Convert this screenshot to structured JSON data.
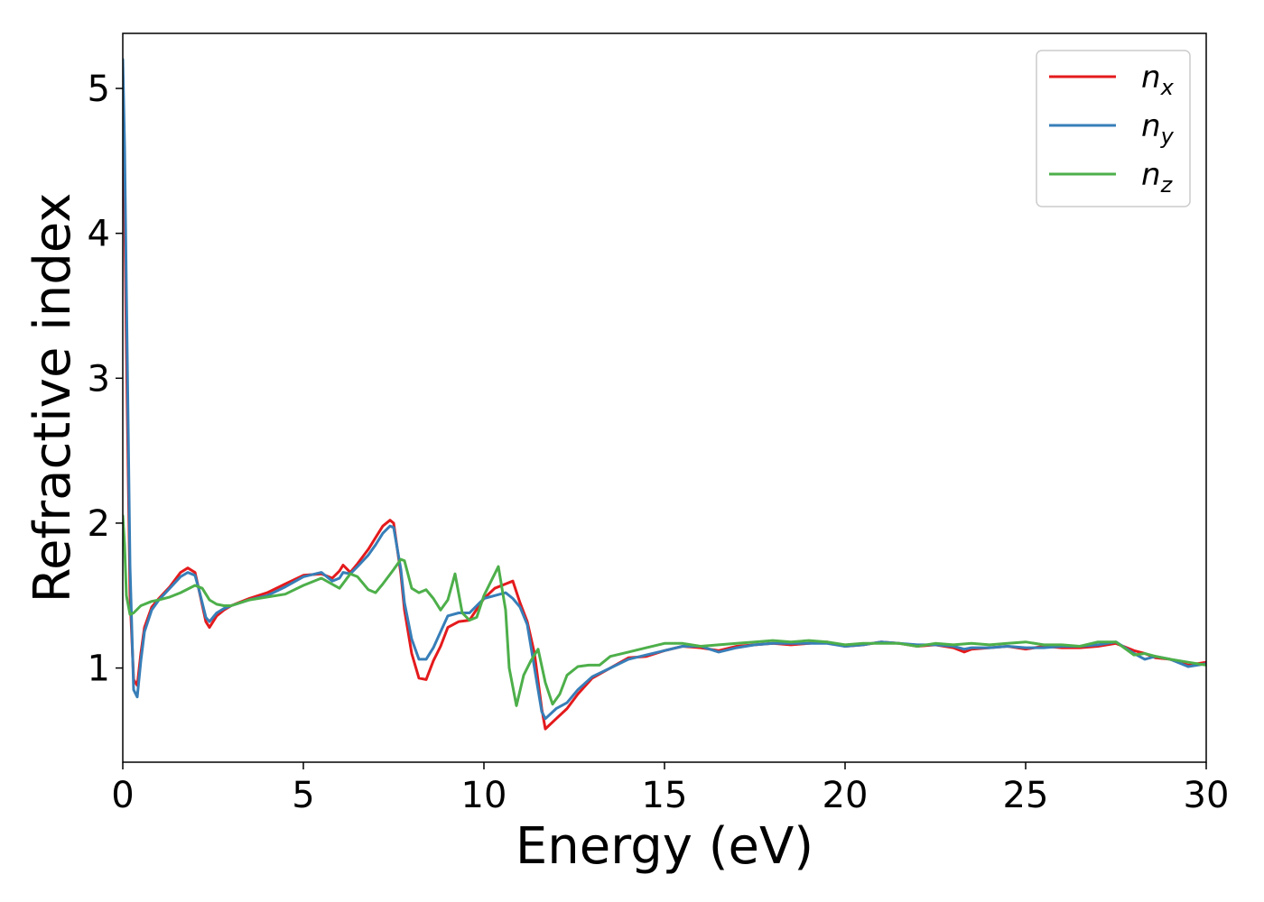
{
  "chart_data": {
    "type": "line",
    "xlabel": "Energy (eV)",
    "ylabel": "Refractive index",
    "xlim": [
      0,
      30
    ],
    "ylim": [
      0.35,
      5.38
    ],
    "xticks": [
      0,
      5,
      10,
      15,
      20,
      25,
      30
    ],
    "xtick_labels": [
      "0",
      "5",
      "10",
      "15",
      "20",
      "25",
      "30"
    ],
    "yticks": [
      1,
      2,
      3,
      4,
      5
    ],
    "ytick_labels": [
      "1",
      "2",
      "3",
      "4",
      "5"
    ],
    "grid": false,
    "legend_position": "top-right",
    "series": [
      {
        "name": "n",
        "subscript": "x",
        "color": "#e41a1c",
        "x": [
          0,
          0.05,
          0.1,
          0.2,
          0.3,
          0.4,
          0.5,
          0.6,
          0.8,
          1.0,
          1.3,
          1.6,
          1.8,
          2.0,
          2.1,
          2.3,
          2.4,
          2.6,
          2.8,
          3.0,
          3.5,
          4.0,
          4.5,
          5.0,
          5.5,
          5.8,
          6.0,
          6.1,
          6.3,
          6.5,
          6.8,
          7.0,
          7.2,
          7.4,
          7.5,
          7.7,
          7.8,
          8.0,
          8.2,
          8.4,
          8.6,
          8.8,
          9.0,
          9.3,
          9.6,
          10.0,
          10.3,
          10.6,
          10.8,
          11.0,
          11.2,
          11.4,
          11.6,
          11.7,
          12.0,
          12.3,
          12.6,
          13.0,
          13.5,
          14.0,
          14.5,
          15.0,
          15.5,
          16.0,
          16.5,
          17.0,
          17.5,
          18.0,
          18.5,
          19.0,
          19.5,
          20.0,
          20.5,
          21.0,
          21.5,
          22.0,
          22.5,
          23.0,
          23.3,
          23.5,
          24.0,
          24.5,
          25.0,
          25.5,
          26.0,
          26.5,
          27.0,
          27.5,
          28.0,
          28.3,
          28.6,
          29.0,
          29.5,
          30.0
        ],
        "y": [
          5.1,
          4.2,
          3.2,
          1.5,
          0.92,
          0.88,
          1.1,
          1.28,
          1.42,
          1.48,
          1.56,
          1.66,
          1.69,
          1.66,
          1.55,
          1.32,
          1.28,
          1.36,
          1.4,
          1.43,
          1.48,
          1.52,
          1.58,
          1.64,
          1.65,
          1.62,
          1.67,
          1.71,
          1.66,
          1.72,
          1.82,
          1.9,
          1.98,
          2.02,
          2.0,
          1.65,
          1.4,
          1.1,
          0.93,
          0.92,
          1.05,
          1.15,
          1.28,
          1.32,
          1.33,
          1.48,
          1.55,
          1.58,
          1.6,
          1.45,
          1.32,
          1.1,
          0.72,
          0.58,
          0.65,
          0.72,
          0.82,
          0.93,
          1.0,
          1.07,
          1.08,
          1.12,
          1.15,
          1.14,
          1.12,
          1.15,
          1.16,
          1.17,
          1.16,
          1.17,
          1.18,
          1.15,
          1.16,
          1.18,
          1.17,
          1.15,
          1.16,
          1.14,
          1.11,
          1.13,
          1.14,
          1.15,
          1.13,
          1.15,
          1.14,
          1.14,
          1.15,
          1.17,
          1.12,
          1.1,
          1.07,
          1.06,
          1.02,
          1.04
        ]
      },
      {
        "name": "n",
        "subscript": "y",
        "color": "#377eb8",
        "x": [
          0,
          0.05,
          0.1,
          0.2,
          0.3,
          0.4,
          0.5,
          0.6,
          0.8,
          1.0,
          1.3,
          1.6,
          1.8,
          2.0,
          2.1,
          2.3,
          2.4,
          2.6,
          2.8,
          3.0,
          3.5,
          4.0,
          4.5,
          5.0,
          5.5,
          5.8,
          6.0,
          6.1,
          6.3,
          6.5,
          6.8,
          7.0,
          7.2,
          7.4,
          7.5,
          7.7,
          7.8,
          8.0,
          8.2,
          8.4,
          8.6,
          8.8,
          9.0,
          9.3,
          9.6,
          10.0,
          10.3,
          10.6,
          10.8,
          11.0,
          11.2,
          11.4,
          11.6,
          11.7,
          12.0,
          12.3,
          12.6,
          13.0,
          13.5,
          14.0,
          14.5,
          15.0,
          15.5,
          16.0,
          16.5,
          17.0,
          17.5,
          18.0,
          18.5,
          19.0,
          19.5,
          20.0,
          20.5,
          21.0,
          21.5,
          22.0,
          22.5,
          23.0,
          23.3,
          23.5,
          24.0,
          24.5,
          25.0,
          25.5,
          26.0,
          26.5,
          27.0,
          27.5,
          28.0,
          28.3,
          28.6,
          29.0,
          29.5,
          30.0
        ],
        "y": [
          5.2,
          4.6,
          3.6,
          1.7,
          0.85,
          0.8,
          1.05,
          1.25,
          1.4,
          1.47,
          1.55,
          1.63,
          1.66,
          1.64,
          1.55,
          1.35,
          1.32,
          1.38,
          1.41,
          1.43,
          1.47,
          1.5,
          1.56,
          1.63,
          1.66,
          1.6,
          1.62,
          1.66,
          1.65,
          1.7,
          1.78,
          1.85,
          1.93,
          1.98,
          1.97,
          1.68,
          1.45,
          1.2,
          1.06,
          1.06,
          1.14,
          1.25,
          1.36,
          1.38,
          1.38,
          1.48,
          1.5,
          1.52,
          1.48,
          1.42,
          1.3,
          1.0,
          0.7,
          0.65,
          0.72,
          0.76,
          0.85,
          0.94,
          1.0,
          1.06,
          1.09,
          1.12,
          1.15,
          1.15,
          1.11,
          1.14,
          1.16,
          1.17,
          1.17,
          1.17,
          1.17,
          1.15,
          1.16,
          1.18,
          1.17,
          1.16,
          1.16,
          1.15,
          1.13,
          1.14,
          1.14,
          1.15,
          1.14,
          1.14,
          1.15,
          1.15,
          1.16,
          1.18,
          1.1,
          1.06,
          1.08,
          1.06,
          1.01,
          1.03
        ]
      },
      {
        "name": "n",
        "subscript": "z",
        "color": "#4daf4a",
        "x": [
          0,
          0.05,
          0.1,
          0.2,
          0.3,
          0.5,
          0.8,
          1.0,
          1.3,
          1.6,
          2.0,
          2.2,
          2.4,
          2.6,
          2.8,
          3.0,
          3.5,
          4.0,
          4.5,
          5.0,
          5.5,
          6.0,
          6.3,
          6.5,
          6.8,
          7.0,
          7.2,
          7.5,
          7.7,
          7.8,
          8.0,
          8.2,
          8.4,
          8.6,
          8.8,
          9.0,
          9.2,
          9.4,
          9.6,
          9.8,
          10.0,
          10.2,
          10.4,
          10.6,
          10.7,
          10.9,
          11.1,
          11.3,
          11.5,
          11.7,
          11.9,
          12.1,
          12.3,
          12.6,
          12.9,
          13.2,
          13.5,
          14.0,
          14.5,
          15.0,
          15.5,
          16.0,
          16.5,
          17.0,
          17.5,
          18.0,
          18.5,
          19.0,
          19.5,
          20.0,
          20.5,
          21.0,
          21.5,
          22.0,
          22.5,
          23.0,
          23.5,
          24.0,
          24.5,
          25.0,
          25.5,
          26.0,
          26.5,
          27.0,
          27.5,
          28.0,
          28.3,
          28.6,
          29.0,
          29.5,
          30.0
        ],
        "y": [
          2.05,
          1.85,
          1.5,
          1.37,
          1.38,
          1.43,
          1.46,
          1.47,
          1.49,
          1.52,
          1.57,
          1.55,
          1.47,
          1.44,
          1.43,
          1.43,
          1.47,
          1.49,
          1.51,
          1.57,
          1.62,
          1.55,
          1.65,
          1.63,
          1.54,
          1.52,
          1.58,
          1.68,
          1.75,
          1.74,
          1.55,
          1.52,
          1.54,
          1.48,
          1.4,
          1.47,
          1.65,
          1.38,
          1.33,
          1.35,
          1.5,
          1.6,
          1.7,
          1.4,
          1.0,
          0.74,
          0.95,
          1.05,
          1.13,
          0.9,
          0.75,
          0.82,
          0.95,
          1.01,
          1.02,
          1.02,
          1.08,
          1.11,
          1.14,
          1.17,
          1.17,
          1.15,
          1.16,
          1.17,
          1.18,
          1.19,
          1.18,
          1.19,
          1.18,
          1.16,
          1.17,
          1.17,
          1.17,
          1.15,
          1.17,
          1.16,
          1.17,
          1.16,
          1.17,
          1.18,
          1.16,
          1.16,
          1.15,
          1.18,
          1.18,
          1.09,
          1.1,
          1.08,
          1.06,
          1.04,
          1.02
        ]
      }
    ]
  }
}
